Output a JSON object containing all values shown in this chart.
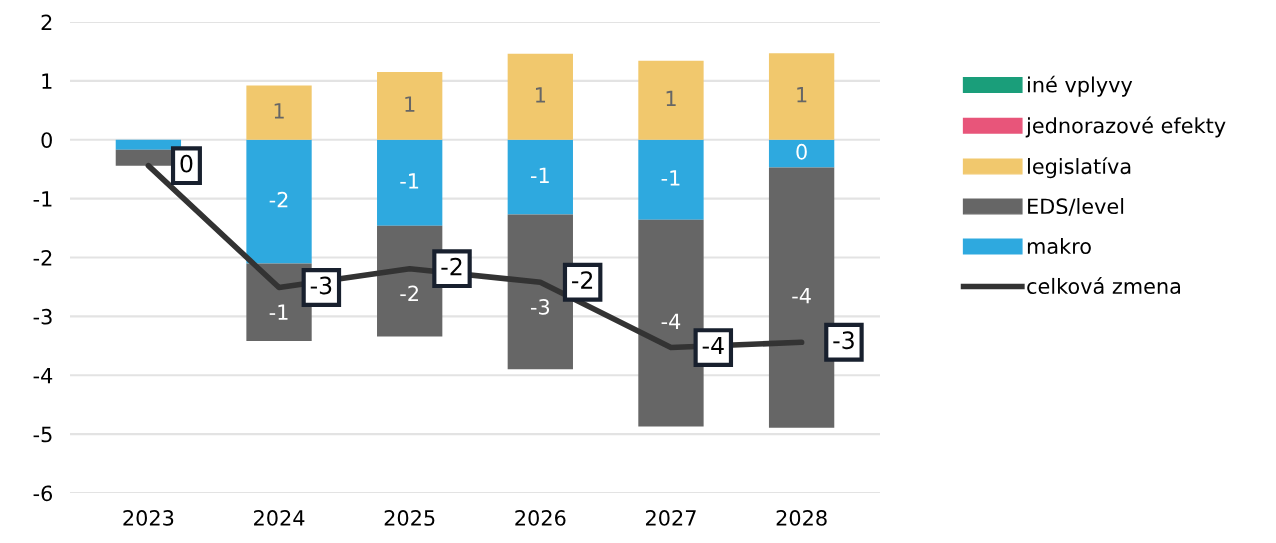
{
  "chart_data": {
    "type": "bar",
    "stacked": true,
    "categories": [
      "2023",
      "2024",
      "2025",
      "2026",
      "2027",
      "2028"
    ],
    "series": [
      {
        "name": "makro",
        "color": "#2ea9df",
        "values": [
          -0.17,
          -2.1,
          -1.46,
          -1.27,
          -1.36,
          -0.47
        ],
        "value_labels": [
          null,
          "-2",
          "-1",
          "-1",
          "-1",
          "0"
        ]
      },
      {
        "name": "EDS/level",
        "color": "#666666",
        "values": [
          -0.27,
          -1.32,
          -1.88,
          -2.63,
          -3.51,
          -4.42
        ],
        "value_labels": [
          null,
          "-1",
          "-2",
          "-3",
          "-4",
          "-4"
        ]
      },
      {
        "name": "legislatíva",
        "color": "#f1c86d",
        "values": [
          null,
          0.92,
          1.15,
          1.46,
          1.34,
          1.47
        ],
        "value_labels": [
          null,
          "1",
          "1",
          "1",
          "1",
          "1"
        ]
      },
      {
        "name": "jednorazové efekty",
        "color": "#e8557a",
        "values": [
          null,
          null,
          null,
          null,
          null,
          null
        ]
      },
      {
        "name": "iné vplyvy",
        "color": "#1a9e7a",
        "values": [
          null,
          null,
          null,
          null,
          null,
          null
        ]
      },
      {
        "name": "celková zmena",
        "type": "line",
        "color": "#333333",
        "values": [
          -0.44,
          -2.51,
          -2.19,
          -2.42,
          -3.53,
          -3.44
        ],
        "value_labels": [
          "0",
          "-3",
          "-2",
          "-2",
          "-4",
          "-3"
        ]
      }
    ],
    "ylim": [
      -6,
      2
    ],
    "yticks": [
      -6,
      -5,
      -4,
      -3,
      -2,
      -1,
      0,
      1,
      2
    ],
    "grid": "y",
    "legend": "right"
  }
}
